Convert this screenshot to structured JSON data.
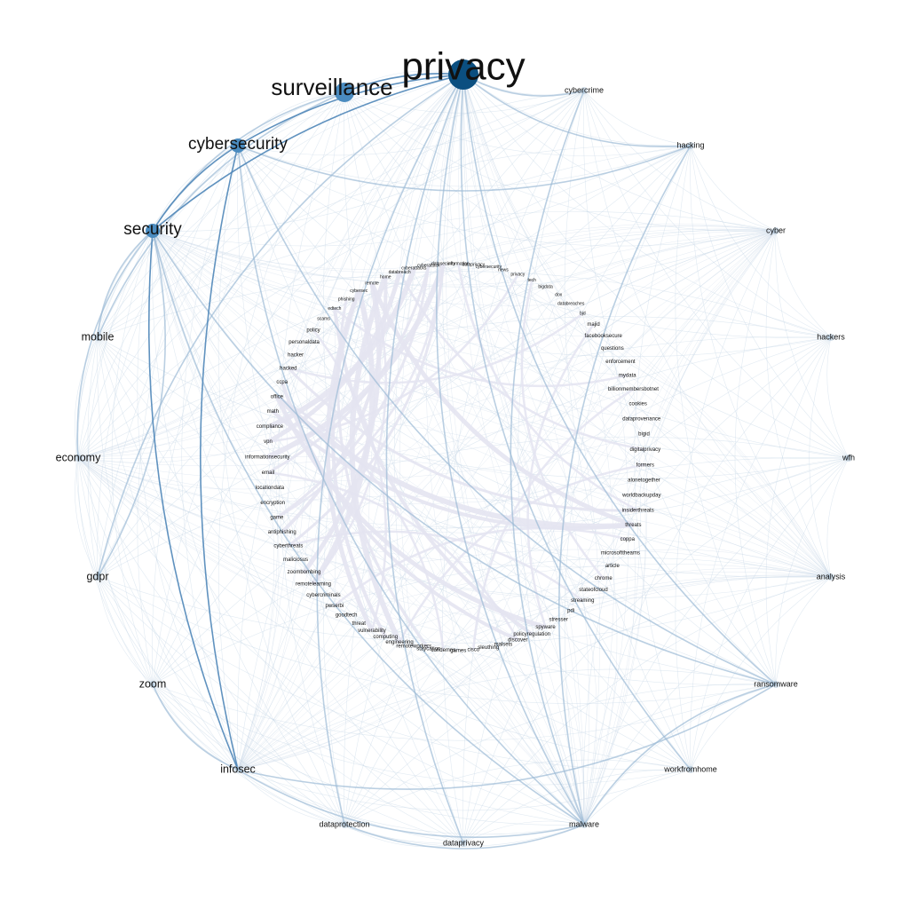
{
  "colors": {
    "background": "#ffffff",
    "node_dark": "#0b4f80",
    "node_mid": "#4a8bbf",
    "node_light": "#a9c2d6",
    "edge_strong": "#4f86b8",
    "edge_mid": "#9dbbd6",
    "edge_light": "#c9d8e8",
    "edge_inner": "#e4e4f1"
  },
  "outer_nodes": [
    {
      "label": "privacy",
      "weight": 1.0
    },
    {
      "label": "surveillance",
      "weight": 0.72
    },
    {
      "label": "cybersecurity",
      "weight": 0.62
    },
    {
      "label": "security",
      "weight": 0.58
    },
    {
      "label": "cybercrime",
      "weight": 0.18
    },
    {
      "label": "hacking",
      "weight": 0.18
    },
    {
      "label": "cyber",
      "weight": 0.16
    },
    {
      "label": "hackers",
      "weight": 0.17
    },
    {
      "label": "mobile",
      "weight": 0.28
    },
    {
      "label": "economy",
      "weight": 0.28
    },
    {
      "label": "wfh",
      "weight": 0.16
    },
    {
      "label": "gdpr",
      "weight": 0.28
    },
    {
      "label": "analysis",
      "weight": 0.16
    },
    {
      "label": "zoom",
      "weight": 0.28
    },
    {
      "label": "ransomware",
      "weight": 0.2
    },
    {
      "label": "infosec",
      "weight": 0.28
    },
    {
      "label": "workfromhome",
      "weight": 0.2
    },
    {
      "label": "dataprotection",
      "weight": 0.2
    },
    {
      "label": "malware",
      "weight": 0.2
    },
    {
      "label": "dataprivacy",
      "weight": 0.2
    }
  ],
  "inner_nodes": [
    "information",
    "dataprivacy",
    "cybersecurity",
    "news",
    "privacy",
    "tech",
    "bigdata",
    "dox",
    "databreaches",
    "bjd",
    "majid",
    "facebooksecure",
    "questions",
    "enforcement",
    "mydata",
    "billionmembersbotnet",
    "cookies",
    "dataprovenance",
    "bigid",
    "digitalprivacy",
    "formers",
    "alonetogether",
    "worldbackupday",
    "insiderthreats",
    "threats",
    "coppa",
    "microsofttheams",
    "article",
    "chrome",
    "stateofcloud",
    "streaming",
    "pdi",
    "stresser",
    "spyware",
    "policyregulation",
    "discover",
    "malsets",
    "sleuthing",
    "cisco",
    "games",
    "condemns",
    "staycation",
    "remoteworkers",
    "engineering",
    "computing",
    "vulnerability",
    "threat",
    "goodtech",
    "pwserbi",
    "cybercriminals",
    "remotelearning",
    "zoombombing",
    "maliciosus",
    "cyberthreats",
    "antiphishing",
    "game",
    "encryption",
    "locationdata",
    "email",
    "informationsecurity",
    "vpn",
    "compliance",
    "math",
    "office",
    "ccpa",
    "hacked",
    "hacker",
    "personaldata",
    "policy",
    "scams",
    "edtech",
    "phishing",
    "cybersec",
    "remote",
    "home",
    "databreach",
    "cyberattacks",
    "cyberattack",
    "datasecurity"
  ],
  "edges_strong": [
    [
      "privacy",
      "surveillance"
    ],
    [
      "privacy",
      "cybersecurity"
    ],
    [
      "privacy",
      "security"
    ],
    [
      "cybersecurity",
      "security"
    ],
    [
      "security",
      "infosec"
    ],
    [
      "cybersecurity",
      "infosec"
    ]
  ],
  "edges_medium": [
    [
      "privacy",
      "cybercrime"
    ],
    [
      "privacy",
      "hacking"
    ],
    [
      "privacy",
      "ransomware"
    ],
    [
      "privacy",
      "malware"
    ],
    [
      "privacy",
      "gdpr"
    ],
    [
      "surveillance",
      "security"
    ],
    [
      "cybersecurity",
      "ransomware"
    ],
    [
      "cybersecurity",
      "malware"
    ],
    [
      "cybersecurity",
      "hacking"
    ],
    [
      "security",
      "malware"
    ],
    [
      "security",
      "ransomware"
    ],
    [
      "security",
      "economy"
    ],
    [
      "security",
      "mobile"
    ],
    [
      "infosec",
      "ransomware"
    ],
    [
      "infosec",
      "malware"
    ],
    [
      "ransomware",
      "malware"
    ],
    [
      "cybercrime",
      "malware"
    ],
    [
      "hacking",
      "malware"
    ],
    [
      "dataprotection",
      "malware"
    ],
    [
      "zoom",
      "infosec"
    ],
    [
      "gdpr",
      "security"
    ],
    [
      "surveillance",
      "mobile"
    ],
    [
      "privacy",
      "dataprivacy"
    ],
    [
      "privacy",
      "dataprotection"
    ],
    [
      "privacy",
      "workfromhome"
    ]
  ],
  "edges_inner": [
    [
      "office",
      "threats"
    ],
    [
      "cybersec",
      "vulnerability"
    ],
    [
      "cybersec",
      "computing"
    ],
    [
      "phishing",
      "staycation"
    ],
    [
      "home",
      "engineering"
    ],
    [
      "remote",
      "threats"
    ],
    [
      "edtech",
      "policyregulation"
    ],
    [
      "email",
      "cyberattack"
    ],
    [
      "informationsecurity",
      "datasecurity"
    ],
    [
      "office",
      "spyware"
    ],
    [
      "ccpa",
      "discover"
    ],
    [
      "hacked",
      "insiderthreats"
    ],
    [
      "compliance",
      "cyberattacks"
    ],
    [
      "vpn",
      "databreach"
    ],
    [
      "math",
      "threats"
    ],
    [
      "cyberthreats",
      "datasecurity"
    ],
    [
      "remotelearning",
      "cybersec"
    ],
    [
      "zoombombing",
      "remote"
    ],
    [
      "antiphishing",
      "home"
    ],
    [
      "game",
      "cyberattack"
    ]
  ]
}
